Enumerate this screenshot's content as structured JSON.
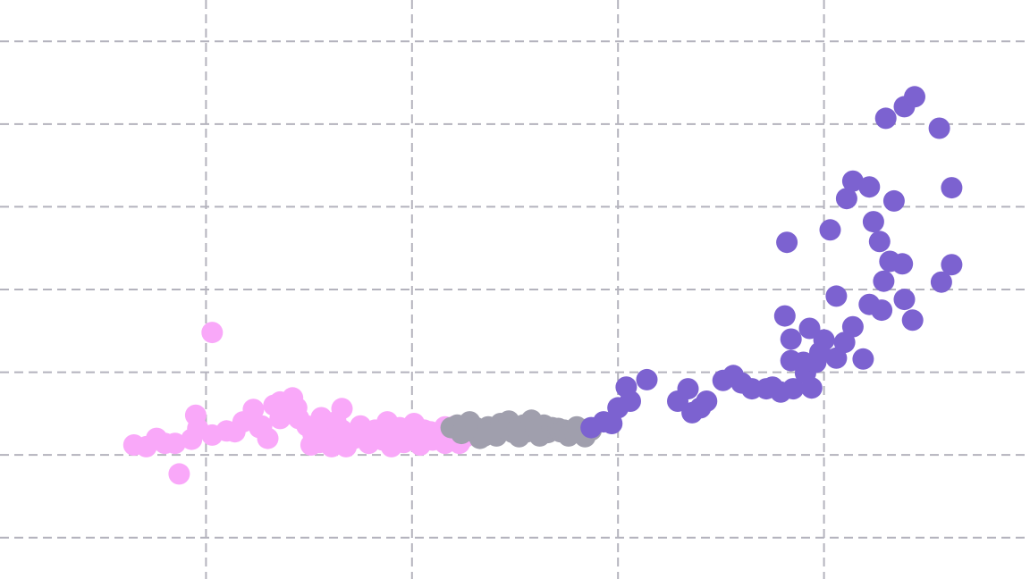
{
  "chart_data": {
    "type": "scatter",
    "title": "",
    "xlabel": "",
    "ylabel": "",
    "grid": true,
    "xlim": [
      -1,
      4
    ],
    "ylim": [
      -1.5,
      5.5
    ],
    "x_gridlines": [
      0,
      1,
      2,
      3
    ],
    "y_gridlines": [
      -1,
      0,
      1,
      2,
      3,
      4,
      5
    ],
    "legend": "none",
    "series": [
      {
        "color": "#f9a8f9",
        "points": [
          [
            -0.35,
            0.12
          ],
          [
            -0.29,
            0.1
          ],
          [
            -0.24,
            0.2
          ],
          [
            -0.2,
            0.14
          ],
          [
            -0.15,
            0.14
          ],
          [
            -0.13,
            -0.23
          ],
          [
            -0.07,
            0.19
          ],
          [
            -0.05,
            0.48
          ],
          [
            -0.04,
            0.32
          ],
          [
            0.03,
            1.48
          ],
          [
            0.03,
            0.24
          ],
          [
            0.1,
            0.29
          ],
          [
            0.14,
            0.28
          ],
          [
            0.18,
            0.4
          ],
          [
            0.23,
            0.55
          ],
          [
            0.26,
            0.33
          ],
          [
            0.27,
            0.35
          ],
          [
            0.3,
            0.2
          ],
          [
            0.33,
            0.6
          ],
          [
            0.36,
            0.64
          ],
          [
            0.36,
            0.44
          ],
          [
            0.38,
            0.62
          ],
          [
            0.41,
            0.5
          ],
          [
            0.42,
            0.69
          ],
          [
            0.44,
            0.57
          ],
          [
            0.45,
            0.44
          ],
          [
            0.49,
            0.35
          ],
          [
            0.51,
            0.12
          ],
          [
            0.52,
            0.25
          ],
          [
            0.55,
            0.15
          ],
          [
            0.56,
            0.45
          ],
          [
            0.58,
            0.2
          ],
          [
            0.6,
            0.38
          ],
          [
            0.61,
            0.1
          ],
          [
            0.63,
            0.4
          ],
          [
            0.66,
            0.3
          ],
          [
            0.66,
            0.56
          ],
          [
            0.68,
            0.1
          ],
          [
            0.7,
            0.18
          ],
          [
            0.72,
            0.2
          ],
          [
            0.74,
            0.26
          ],
          [
            0.75,
            0.35
          ],
          [
            0.77,
            0.24
          ],
          [
            0.79,
            0.14
          ],
          [
            0.82,
            0.3
          ],
          [
            0.84,
            0.25
          ],
          [
            0.86,
            0.18
          ],
          [
            0.88,
            0.4
          ],
          [
            0.89,
            0.3
          ],
          [
            0.9,
            0.1
          ],
          [
            0.92,
            0.22
          ],
          [
            0.94,
            0.33
          ],
          [
            0.96,
            0.15
          ],
          [
            0.98,
            0.26
          ],
          [
            1.01,
            0.38
          ],
          [
            1.02,
            0.2
          ],
          [
            1.04,
            0.12
          ],
          [
            1.06,
            0.3
          ],
          [
            1.09,
            0.28
          ],
          [
            1.1,
            0.18
          ],
          [
            1.13,
            0.2
          ],
          [
            1.16,
            0.14
          ],
          [
            1.16,
            0.34
          ],
          [
            1.18,
            0.22
          ],
          [
            1.21,
            0.35
          ],
          [
            1.22,
            0.3
          ],
          [
            1.23,
            0.14
          ],
          [
            1.25,
            0.27
          ],
          [
            1.26,
            0.22
          ]
        ]
      },
      {
        "color": "#a09fad",
        "points": [
          [
            1.19,
            0.33
          ],
          [
            1.22,
            0.36
          ],
          [
            1.24,
            0.26
          ],
          [
            1.26,
            0.3
          ],
          [
            1.28,
            0.4
          ],
          [
            1.3,
            0.28
          ],
          [
            1.31,
            0.33
          ],
          [
            1.33,
            0.2
          ],
          [
            1.35,
            0.23
          ],
          [
            1.37,
            0.34
          ],
          [
            1.39,
            0.31
          ],
          [
            1.41,
            0.23
          ],
          [
            1.43,
            0.38
          ],
          [
            1.45,
            0.32
          ],
          [
            1.47,
            0.41
          ],
          [
            1.49,
            0.27
          ],
          [
            1.51,
            0.3
          ],
          [
            1.52,
            0.22
          ],
          [
            1.54,
            0.36
          ],
          [
            1.56,
            0.28
          ],
          [
            1.58,
            0.42
          ],
          [
            1.6,
            0.3
          ],
          [
            1.62,
            0.23
          ],
          [
            1.64,
            0.36
          ],
          [
            1.66,
            0.27
          ],
          [
            1.68,
            0.33
          ],
          [
            1.71,
            0.32
          ],
          [
            1.72,
            0.28
          ],
          [
            1.74,
            0.3
          ],
          [
            1.76,
            0.23
          ],
          [
            1.79,
            0.27
          ],
          [
            1.8,
            0.34
          ],
          [
            1.82,
            0.28
          ],
          [
            1.84,
            0.22
          ],
          [
            1.85,
            0.31
          ],
          [
            1.87,
            0.3
          ]
        ]
      },
      {
        "color": "#7c62d0",
        "points": [
          [
            1.87,
            0.33
          ],
          [
            1.93,
            0.4
          ],
          [
            1.97,
            0.38
          ],
          [
            2.0,
            0.57
          ],
          [
            2.04,
            0.82
          ],
          [
            2.06,
            0.65
          ],
          [
            2.14,
            0.91
          ],
          [
            2.29,
            0.65
          ],
          [
            2.34,
            0.8
          ],
          [
            2.36,
            0.51
          ],
          [
            2.4,
            0.57
          ],
          [
            2.43,
            0.65
          ],
          [
            2.56,
            0.96
          ],
          [
            2.51,
            0.9
          ],
          [
            2.6,
            0.87
          ],
          [
            2.65,
            0.8
          ],
          [
            2.75,
            0.82
          ],
          [
            2.72,
            0.8
          ],
          [
            2.79,
            0.76
          ],
          [
            2.85,
            0.8
          ],
          [
            2.94,
            0.81
          ],
          [
            2.91,
            0.99
          ],
          [
            2.9,
            1.12
          ],
          [
            2.96,
            1.12
          ],
          [
            2.98,
            1.24
          ],
          [
            3.0,
            1.39
          ],
          [
            3.06,
            1.17
          ],
          [
            3.14,
            1.55
          ],
          [
            3.19,
            1.16
          ],
          [
            3.06,
            1.92
          ],
          [
            2.93,
            1.53
          ],
          [
            2.82,
            2.57
          ],
          [
            2.81,
            1.68
          ],
          [
            3.03,
            2.72
          ],
          [
            3.24,
            2.82
          ],
          [
            3.29,
            2.1
          ],
          [
            3.27,
            2.58
          ],
          [
            3.34,
            3.07
          ],
          [
            3.38,
            2.31
          ],
          [
            3.22,
            3.24
          ],
          [
            3.3,
            4.07
          ],
          [
            3.39,
            4.21
          ],
          [
            3.44,
            4.33
          ],
          [
            3.56,
            3.95
          ],
          [
            3.62,
            3.23
          ],
          [
            3.62,
            2.3
          ],
          [
            3.57,
            2.09
          ],
          [
            3.32,
            2.34
          ],
          [
            3.43,
            1.63
          ],
          [
            3.39,
            1.88
          ],
          [
            3.11,
            3.1
          ],
          [
            3.14,
            3.31
          ],
          [
            3.22,
            1.82
          ],
          [
            3.28,
            1.75
          ],
          [
            3.1,
            1.36
          ],
          [
            2.84,
            1.14
          ],
          [
            2.84,
            1.4
          ]
        ]
      }
    ]
  }
}
